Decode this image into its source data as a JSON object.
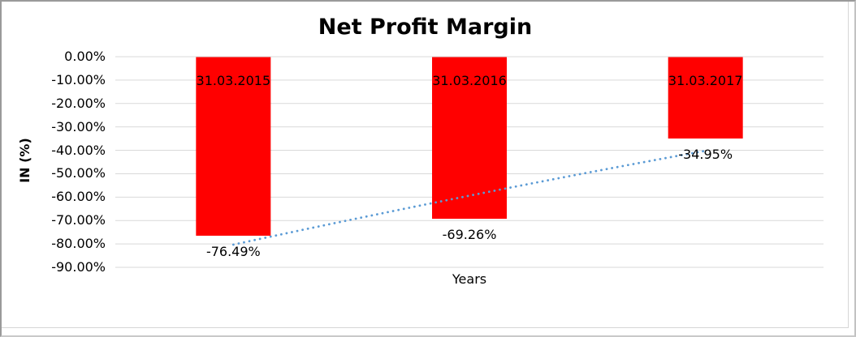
{
  "chart_data": {
    "type": "bar",
    "title": "Net Profit Margin",
    "xlabel": "Years",
    "ylabel": "IN (%)",
    "categories": [
      "31.03.2015",
      "31.03.2016",
      "31.03.2017"
    ],
    "values": [
      -76.49,
      -69.26,
      -34.95
    ],
    "data_labels": [
      "-76.49%",
      "-69.26%",
      "-34.95%"
    ],
    "ylim": [
      -90,
      0
    ],
    "y_tick_labels": [
      "0.00%",
      "-10.00%",
      "-20.00%",
      "-30.00%",
      "-40.00%",
      "-50.00%",
      "-60.00%",
      "-70.00%",
      "-80.00%",
      "-90.00%"
    ],
    "y_tick_values": [
      0,
      -10,
      -20,
      -30,
      -40,
      -50,
      -60,
      -70,
      -80,
      -90
    ],
    "grid": true,
    "legend": "none",
    "colors": {
      "bar": "#FF0000",
      "gridline": "#D9D9D9",
      "trendline": "#5B9BD5",
      "text": "#000000"
    },
    "trendline": {
      "style": "dotted",
      "start": {
        "category_index": 0,
        "value": -80.3
      },
      "end": {
        "category_index": 2,
        "value": -40.2
      }
    }
  }
}
